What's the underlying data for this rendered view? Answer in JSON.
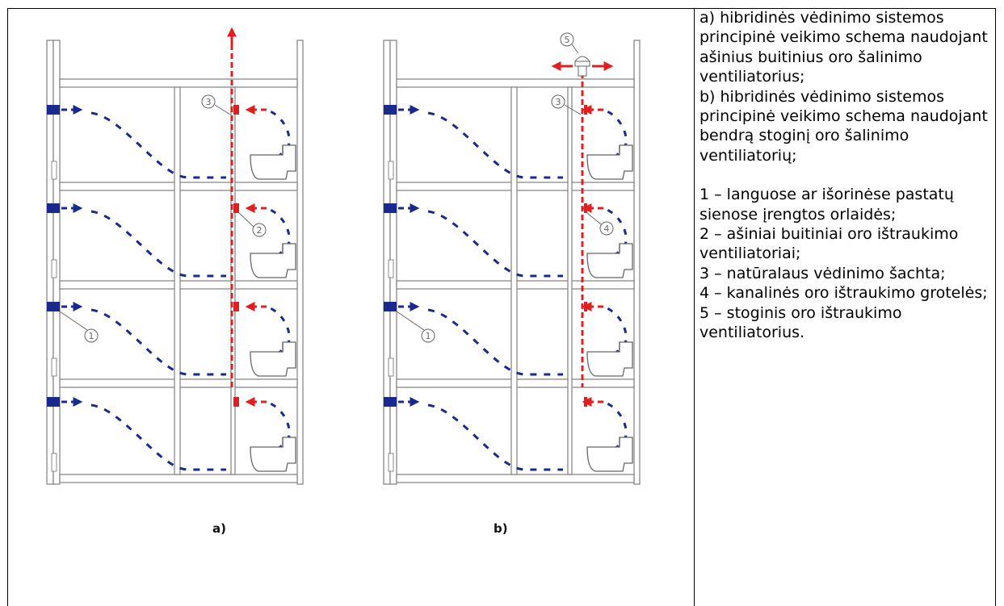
{
  "captions": {
    "a": "a)",
    "b": "b)"
  },
  "markers": {
    "m1": "1",
    "m2": "2",
    "m3": "3",
    "m4": "4",
    "m5": "5"
  },
  "colors": {
    "inlet": "#1a2a8c",
    "exhaust": "#e02020",
    "structure": "#888888"
  },
  "icons": [
    "window-inlet-icon",
    "axial-fan-icon",
    "toilet-icon",
    "roof-fan-icon"
  ],
  "description": {
    "a": "a) hibridinės vėdinimo sistemos principinė veikimo schema naudojant ašinius buitinius oro šalinimo ventiliatorius;",
    "b": "b) hibridinės vėdinimo sistemos principinė veikimo schema naudojant bendrą stoginį oro šalinimo ventiliatorių;",
    "legend": [
      "1 – languose ar išorinėse pastatų sienose įrengtos orlaidės;",
      "2 – ašiniai buitiniai oro ištraukimo ventiliatoriai;",
      "3 – natūralaus vėdinimo šachta;",
      "4 – kanalinės oro ištraukimo grotelės;",
      "5 – stoginis oro ištraukimo ventiliatorius."
    ]
  }
}
